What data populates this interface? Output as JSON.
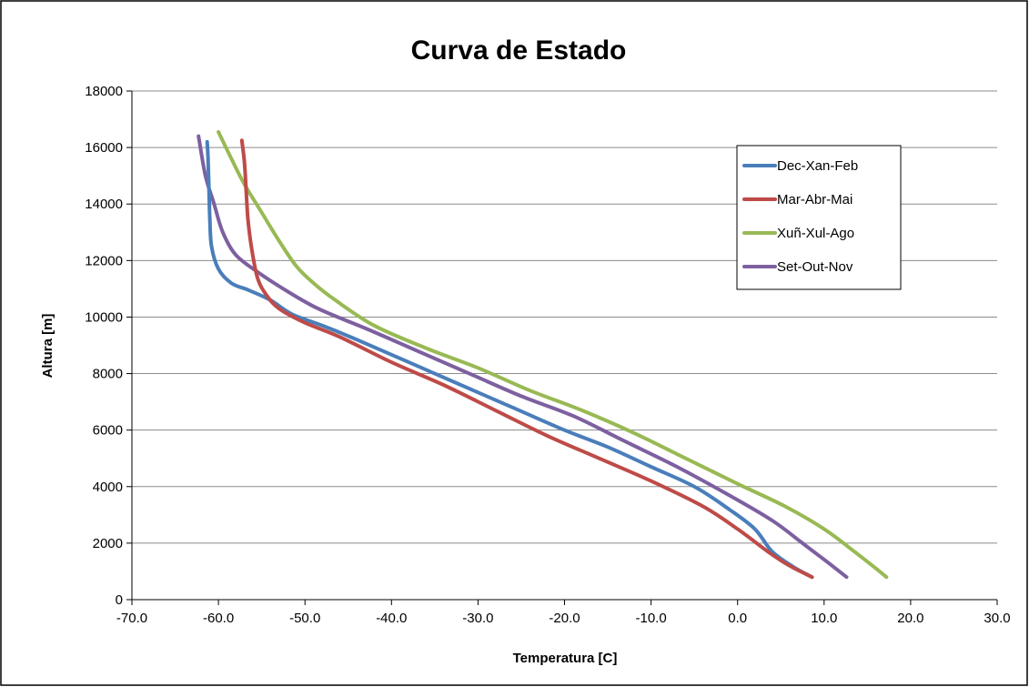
{
  "chart_data": {
    "type": "line",
    "title": "Curva de Estado",
    "xlabel": "Temperatura [C]",
    "ylabel": "Altura [m]",
    "xlim": [
      -70,
      30
    ],
    "ylim": [
      0,
      18000
    ],
    "x_ticks": [
      "-70.0",
      "-60.0",
      "-50.0",
      "-40.0",
      "-30.0",
      "-20.0",
      "-10.0",
      "0.0",
      "10.0",
      "20.0",
      "30.0"
    ],
    "y_ticks": [
      "0",
      "2000",
      "4000",
      "6000",
      "8000",
      "10000",
      "12000",
      "14000",
      "16000",
      "18000"
    ],
    "grid": "horizontal",
    "legend_position": "top-right",
    "series": [
      {
        "name": "Dec-Xan-Feb",
        "color": "#4a7ebb",
        "points": [
          [
            8.6,
            800
          ],
          [
            6.5,
            1150
          ],
          [
            4.0,
            1700
          ],
          [
            2.0,
            2500
          ],
          [
            -1.0,
            3200
          ],
          [
            -5.0,
            4000
          ],
          [
            -10.0,
            4700
          ],
          [
            -15.0,
            5400
          ],
          [
            -20.0,
            6000
          ],
          [
            -26.0,
            6800
          ],
          [
            -32.0,
            7600
          ],
          [
            -38.0,
            8400
          ],
          [
            -44.0,
            9200
          ],
          [
            -48.0,
            9700
          ],
          [
            -51.5,
            10100
          ],
          [
            -54.0,
            10600
          ],
          [
            -56.5,
            10950
          ],
          [
            -58.5,
            11200
          ],
          [
            -60.0,
            11700
          ],
          [
            -60.8,
            12500
          ],
          [
            -61.0,
            13500
          ],
          [
            -61.1,
            14600
          ],
          [
            -61.2,
            15600
          ],
          [
            -61.3,
            16200
          ]
        ]
      },
      {
        "name": "Mar-Abr-Mai",
        "color": "#be4b48",
        "points": [
          [
            8.6,
            800
          ],
          [
            6.0,
            1200
          ],
          [
            3.5,
            1700
          ],
          [
            0.0,
            2500
          ],
          [
            -4.0,
            3300
          ],
          [
            -10.0,
            4200
          ],
          [
            -16.0,
            5000
          ],
          [
            -22.0,
            5800
          ],
          [
            -28.0,
            6700
          ],
          [
            -34.0,
            7600
          ],
          [
            -40.0,
            8400
          ],
          [
            -46.0,
            9300
          ],
          [
            -50.0,
            9800
          ],
          [
            -53.0,
            10300
          ],
          [
            -54.5,
            10800
          ],
          [
            -55.5,
            11400
          ],
          [
            -56.2,
            12500
          ],
          [
            -56.6,
            13500
          ],
          [
            -56.8,
            14500
          ],
          [
            -57.0,
            15500
          ],
          [
            -57.3,
            16250
          ]
        ]
      },
      {
        "name": "Xuñ-Xul-Ago",
        "color": "#98b954",
        "points": [
          [
            17.2,
            800
          ],
          [
            16.0,
            1100
          ],
          [
            13.5,
            1700
          ],
          [
            10.0,
            2500
          ],
          [
            5.5,
            3300
          ],
          [
            0.0,
            4100
          ],
          [
            -6.0,
            5000
          ],
          [
            -12.0,
            5900
          ],
          [
            -18.0,
            6700
          ],
          [
            -24.0,
            7400
          ],
          [
            -30.0,
            8200
          ],
          [
            -36.0,
            8900
          ],
          [
            -42.0,
            9700
          ],
          [
            -46.5,
            10600
          ],
          [
            -49.0,
            11200
          ],
          [
            -51.0,
            11800
          ],
          [
            -53.0,
            12700
          ],
          [
            -55.0,
            13700
          ],
          [
            -57.0,
            14700
          ],
          [
            -58.5,
            15600
          ],
          [
            -60.0,
            16550
          ]
        ]
      },
      {
        "name": "Set-Out-Nov",
        "color": "#7d60a0",
        "points": [
          [
            12.6,
            800
          ],
          [
            10.5,
            1300
          ],
          [
            7.5,
            2000
          ],
          [
            4.0,
            2800
          ],
          [
            -1.0,
            3700
          ],
          [
            -7.0,
            4700
          ],
          [
            -13.0,
            5600
          ],
          [
            -19.0,
            6500
          ],
          [
            -25.0,
            7200
          ],
          [
            -31.0,
            8000
          ],
          [
            -37.0,
            8800
          ],
          [
            -43.0,
            9600
          ],
          [
            -48.5,
            10300
          ],
          [
            -52.5,
            11000
          ],
          [
            -55.5,
            11600
          ],
          [
            -58.0,
            12200
          ],
          [
            -59.5,
            13000
          ],
          [
            -60.5,
            14000
          ],
          [
            -61.5,
            15000
          ],
          [
            -62.3,
            16400
          ]
        ]
      }
    ]
  }
}
